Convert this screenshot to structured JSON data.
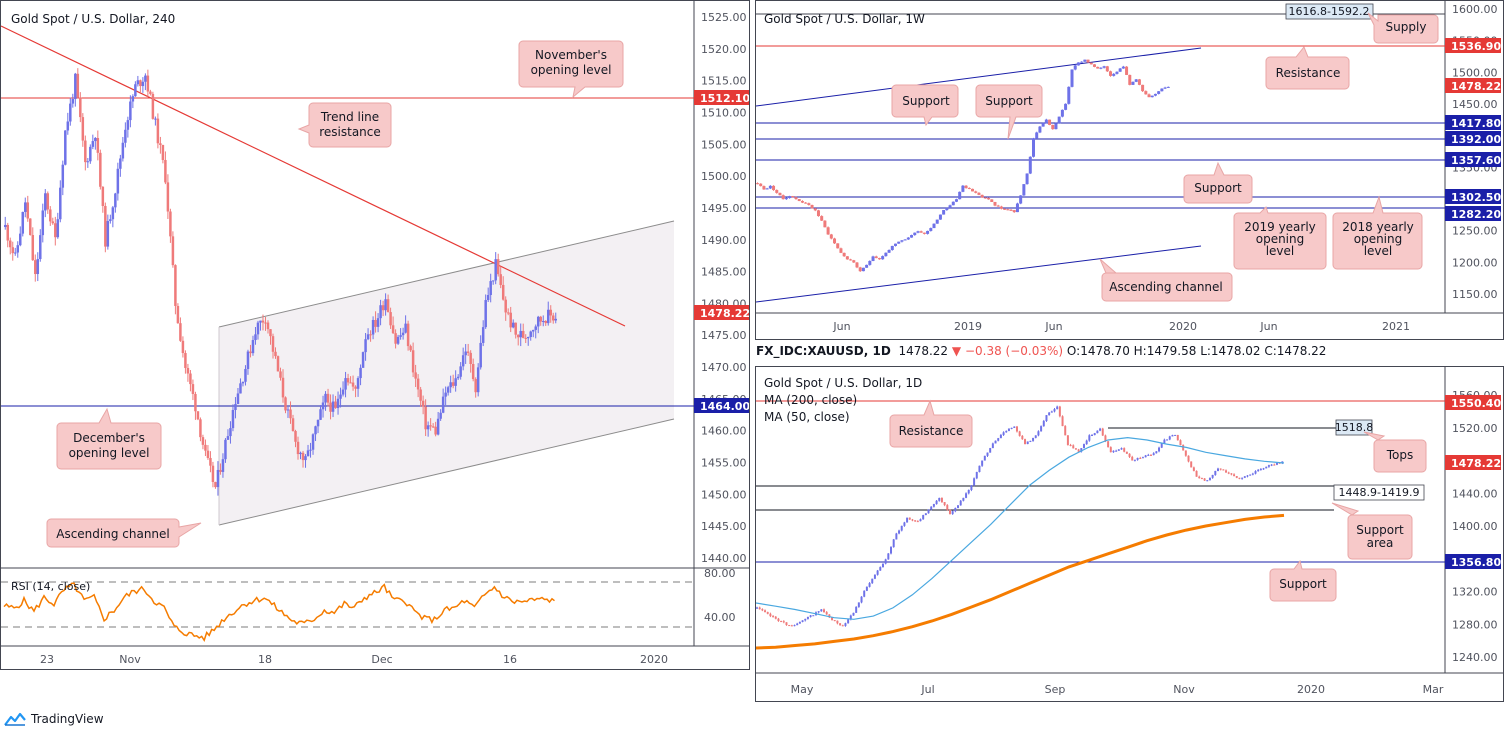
{
  "brand": {
    "name": "TradingView"
  },
  "colors": {
    "bull": "#6e72e8",
    "bear": "#ef7a7a",
    "resistance": "#e53935",
    "support": "#1a1fa8",
    "channel": "#8c8c8c",
    "rsi": "#f57c00",
    "ma50": "#4aa8e0",
    "ma200": "#f57c00",
    "note_bg": "#f7c9c9",
    "note_border": "#e8a5a5"
  },
  "panels": {
    "h4": {
      "title": "Gold Spot / U.S. Dollar, 240",
      "y_labels": [
        "1525.00",
        "1520.00",
        "1515.00",
        "1510.00",
        "1505.00",
        "1500.00",
        "1495.00",
        "1490.00",
        "1485.00",
        "1480.00",
        "1475.00",
        "1470.00",
        "1465.00",
        "1460.00",
        "1455.00",
        "1450.00",
        "1445.00",
        "1440.00"
      ],
      "x_labels": [
        "23",
        "Nov",
        "18",
        "Dec",
        "16",
        "2020"
      ],
      "tags": [
        {
          "text": "1512.10",
          "kind": "resistance"
        },
        {
          "text": "1478.22",
          "kind": "price"
        },
        {
          "text": "1464.00",
          "kind": "support"
        }
      ],
      "annotations": {
        "november": "November's opening level",
        "trendline": "Trend line resistance",
        "december": "December's opening level",
        "channel": "Ascending channel"
      },
      "rsi": {
        "label": "RSI (14, close)",
        "levels": [
          "80.00",
          "40.00"
        ]
      }
    },
    "w1": {
      "title": "Gold Spot / U.S. Dollar, 1W",
      "y_labels": [
        "1600.00",
        "1550.00",
        "1500.00",
        "1450.00",
        "1400.00",
        "1350.00",
        "1300.00",
        "1250.00",
        "1200.00",
        "1150.00"
      ],
      "x_labels": [
        "Jun",
        "2019",
        "Jun",
        "2020",
        "Jun",
        "2021"
      ],
      "tags": [
        {
          "text": "1536.90",
          "kind": "resistance"
        },
        {
          "text": "1478.22",
          "kind": "price"
        },
        {
          "text": "1417.80",
          "kind": "support"
        },
        {
          "text": "1392.00",
          "kind": "support"
        },
        {
          "text": "1357.60",
          "kind": "support"
        },
        {
          "text": "1302.50",
          "kind": "support"
        },
        {
          "text": "1282.20",
          "kind": "support"
        }
      ],
      "zone_box": "1616.8-1592.2",
      "annotations": {
        "supply": "Supply",
        "resistance": "Resistance",
        "support1": "Support",
        "support2": "Support",
        "support3": "Support",
        "yo2019": "2019 yearly opening level",
        "yo2018": "2018 yearly opening level",
        "channel": "Ascending channel"
      }
    },
    "d1": {
      "title": "Gold Spot / U.S. Dollar, 1D",
      "ma200_label": "MA (200, close)",
      "ma50_label": "MA (50, close)",
      "y_labels": [
        "1560.00",
        "1520.00",
        "1480.00",
        "1440.00",
        "1400.00",
        "1360.00",
        "1320.00",
        "1280.00",
        "1240.00"
      ],
      "x_labels": [
        "May",
        "Jul",
        "Sep",
        "Nov",
        "2020",
        "Mar"
      ],
      "tags": [
        {
          "text": "1550.40",
          "kind": "resistance"
        },
        {
          "text": "1478.22",
          "kind": "price"
        },
        {
          "text": "1356.80",
          "kind": "support"
        }
      ],
      "tops_box": "1518.8",
      "area_box": "1448.9-1419.9",
      "annotations": {
        "resistance": "Resistance",
        "tops": "Tops",
        "support_area": "Support area",
        "support": "Support"
      }
    }
  },
  "symbol_info": {
    "symbol": "FX_IDC:XAUUSD, 1D",
    "last": "1478.22",
    "change": "−0.38 (−0.03%)",
    "o": "O:1478.70",
    "h": "H:1479.58",
    "l": "L:1478.02",
    "c": "C:1478.22"
  },
  "chart_data": [
    {
      "type": "candlestick",
      "title": "Gold Spot / U.S. Dollar, 240",
      "xlabel": "",
      "ylabel": "",
      "ylim": [
        1437,
        1527
      ],
      "x_ticks": [
        "23",
        "Nov",
        "18",
        "Dec",
        "16",
        "2020"
      ],
      "levels": [
        {
          "name": "November's opening level",
          "value": 1512.1
        },
        {
          "name": "December's opening level",
          "value": 1464.0
        }
      ],
      "last_price": 1478.22,
      "path": [
        1492,
        1487,
        1496,
        1484,
        1497,
        1490,
        1507,
        1515,
        1502,
        1507,
        1490,
        1498,
        1508,
        1514,
        1516,
        1508,
        1500,
        1480,
        1470,
        1464,
        1456,
        1451,
        1458,
        1465,
        1470,
        1476,
        1478,
        1471,
        1464,
        1458,
        1455,
        1460,
        1465,
        1463,
        1469,
        1466,
        1475,
        1477,
        1481,
        1474,
        1476,
        1468,
        1461,
        1460,
        1466,
        1468,
        1473,
        1467,
        1480,
        1486,
        1479,
        1475,
        1475,
        1477,
        1478,
        1478
      ],
      "rsi": {
        "label": "RSI (14, close)",
        "levels": [
          70,
          30
        ],
        "ylim": [
          15,
          85
        ],
        "values": [
          50,
          48,
          55,
          45,
          58,
          52,
          65,
          70,
          55,
          58,
          38,
          46,
          58,
          64,
          66,
          55,
          48,
          30,
          25,
          22,
          20,
          28,
          38,
          45,
          52,
          55,
          58,
          50,
          42,
          35,
          33,
          38,
          46,
          44,
          52,
          48,
          58,
          62,
          68,
          55,
          56,
          45,
          38,
          37,
          46,
          48,
          55,
          48,
          60,
          68,
          58,
          54,
          54,
          56,
          56,
          55
        ]
      }
    },
    {
      "type": "candlestick",
      "title": "Gold Spot / U.S. Dollar, 1W",
      "xlabel": "",
      "ylabel": "",
      "ylim": [
        1115,
        1605
      ],
      "x_ticks": [
        "Jun",
        "2019",
        "Jun",
        "2020",
        "Jun",
        "2021"
      ],
      "levels": [
        {
          "name": "Resistance",
          "value": 1536.9
        },
        {
          "name": "Support",
          "value": 1417.8
        },
        {
          "name": "Support",
          "value": 1392.0
        },
        {
          "name": "Support",
          "value": 1357.6
        },
        {
          "name": "2019 yearly opening level",
          "value": 1282.2
        },
        {
          "name": "2018 yearly opening level",
          "value": 1302.5
        }
      ],
      "zones": [
        {
          "name": "Supply",
          "from": 1592.2,
          "to": 1616.8
        }
      ],
      "last_price": 1478.22,
      "path": [
        1325,
        1315,
        1320,
        1310,
        1300,
        1305,
        1300,
        1295,
        1290,
        1282,
        1265,
        1245,
        1230,
        1215,
        1205,
        1200,
        1185,
        1196,
        1210,
        1205,
        1215,
        1225,
        1232,
        1236,
        1243,
        1250,
        1245,
        1255,
        1268,
        1283,
        1290,
        1300,
        1322,
        1315,
        1310,
        1302,
        1300,
        1290,
        1285,
        1283,
        1280,
        1305,
        1340,
        1395,
        1415,
        1425,
        1410,
        1430,
        1450,
        1505,
        1515,
        1520,
        1512,
        1505,
        1510,
        1495,
        1502,
        1510,
        1480,
        1490,
        1470,
        1460,
        1465,
        1475,
        1478
      ]
    },
    {
      "type": "candlestick",
      "title": "Gold Spot / U.S. Dollar, 1D",
      "xlabel": "",
      "ylabel": "",
      "ylim": [
        1225,
        1575
      ],
      "x_ticks": [
        "May",
        "Jul",
        "Sep",
        "Nov",
        "2020",
        "Mar"
      ],
      "levels": [
        {
          "name": "Resistance",
          "value": 1550.4
        },
        {
          "name": "Support",
          "value": 1356.8
        },
        {
          "name": "Tops",
          "value": 1518.8
        }
      ],
      "zones": [
        {
          "name": "Support area",
          "from": 1419.9,
          "to": 1448.9
        }
      ],
      "last_price": 1478.22,
      "series": [
        {
          "name": "MA (200, close)",
          "values": [
            1251,
            1252,
            1254,
            1256,
            1259,
            1262,
            1266,
            1271,
            1277,
            1284,
            1292,
            1301,
            1310,
            1320,
            1330,
            1340,
            1350,
            1358,
            1366,
            1374,
            1382,
            1389,
            1395,
            1400,
            1404,
            1408,
            1411,
            1413
          ]
        },
        {
          "name": "MA (50, close)",
          "values": [
            1306,
            1302,
            1298,
            1293,
            1288,
            1286,
            1290,
            1300,
            1316,
            1336,
            1358,
            1380,
            1402,
            1426,
            1450,
            1468,
            1484,
            1496,
            1505,
            1508,
            1505,
            1500,
            1496,
            1490,
            1486,
            1482,
            1479,
            1477
          ]
        }
      ],
      "path": [
        1300,
        1292,
        1285,
        1278,
        1282,
        1290,
        1298,
        1285,
        1278,
        1295,
        1320,
        1340,
        1360,
        1390,
        1410,
        1405,
        1420,
        1435,
        1415,
        1430,
        1450,
        1480,
        1500,
        1515,
        1522,
        1500,
        1510,
        1535,
        1545,
        1500,
        1490,
        1510,
        1518,
        1490,
        1495,
        1480,
        1485,
        1488,
        1505,
        1512,
        1485,
        1460,
        1455,
        1470,
        1465,
        1458,
        1462,
        1470,
        1475,
        1478
      ]
    }
  ]
}
